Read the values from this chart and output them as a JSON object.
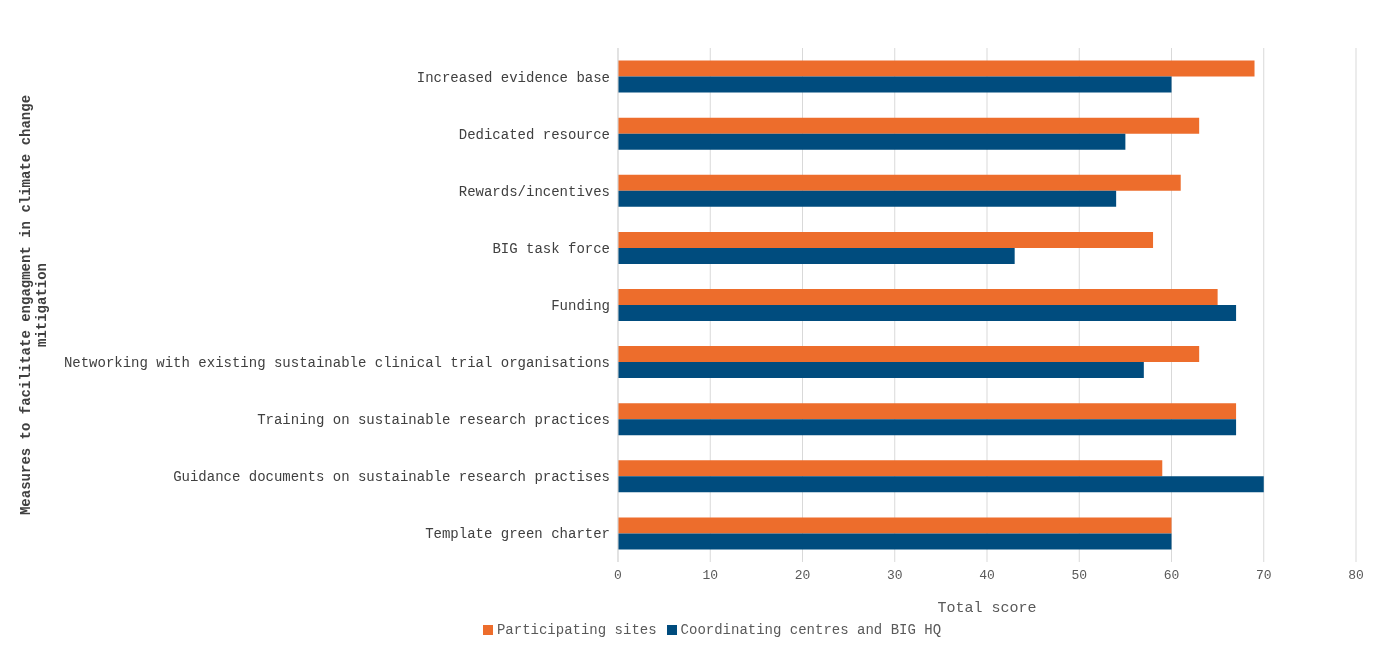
{
  "chart_data": {
    "type": "bar",
    "orientation": "horizontal",
    "xlabel": "Total score",
    "ylabel": "Measures to facilitate engagment in climate change mitigation",
    "categories": [
      "Increased evidence base",
      "Dedicated resource",
      "Rewards/incentives",
      "BIG task force",
      "Funding ",
      "Networking with existing sustainable clinical trial organisations",
      "Training on sustainable research practices",
      "Guidance documents on sustainable research practises",
      "Template green charter"
    ],
    "series": [
      {
        "name": "Participating sites",
        "color": "#ed6d2c",
        "values": [
          69,
          63,
          61,
          58,
          65,
          63,
          67,
          59,
          60
        ]
      },
      {
        "name": "Coordinating centres and BIG HQ",
        "color": "#004c7e",
        "values": [
          60,
          55,
          54,
          43,
          67,
          57,
          67,
          70,
          60
        ]
      }
    ],
    "xlim": [
      0,
      80
    ],
    "xticks": [
      0,
      10,
      20,
      30,
      40,
      50,
      60,
      70,
      80
    ],
    "grid": "x",
    "legend": "bottom"
  }
}
